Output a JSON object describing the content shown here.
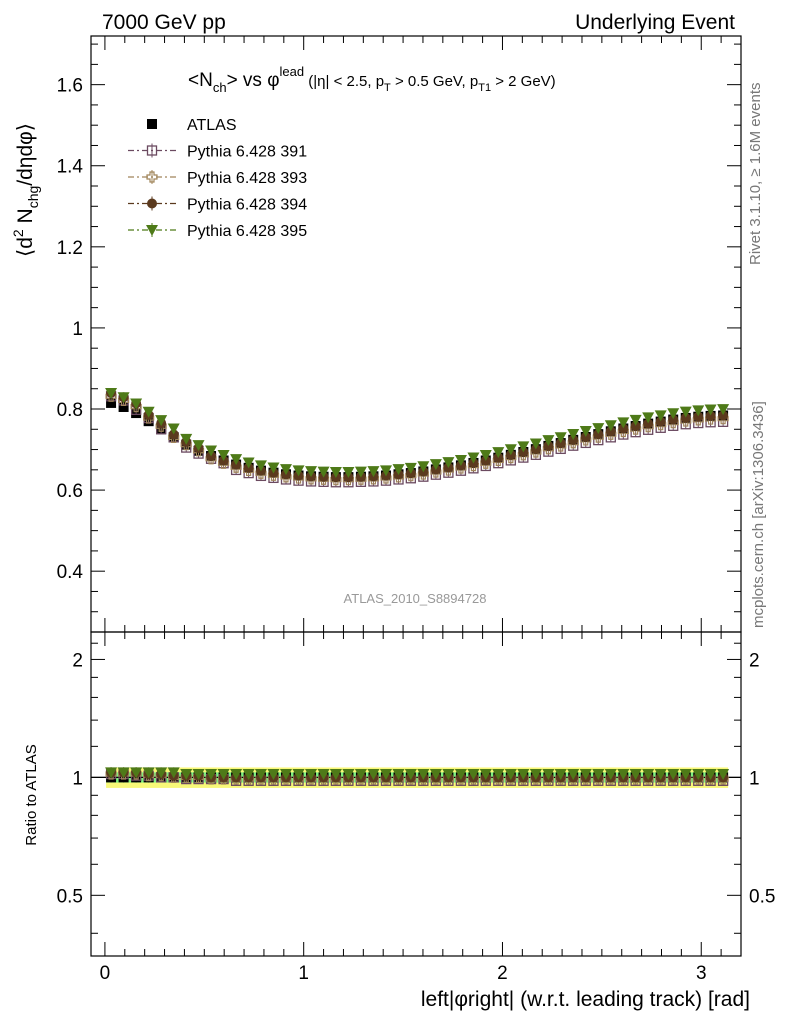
{
  "header": {
    "left": "7000 GeV pp",
    "right": "Underlying Event"
  },
  "side_labels": {
    "rivet": "Rivet 3.1.10, ≥ 1.6M events",
    "mcplots": "mcplots.cern.ch [arXiv:1306.3436]"
  },
  "chart_data": {
    "type": "scatter",
    "title": "<N_ch> vs φ^lead (|η| < 2.5, p_T > 0.5 GeV, p_T1 > 2 GeV)",
    "title_parts": {
      "a": "<N",
      "a_sub": "ch",
      "b": "> vs φ",
      "b_sup": "lead",
      "c": " (|η| < 2.5, p",
      "c_sub": "T",
      "d": " > 0.5 GeV, p",
      "d_sub": "T1",
      "e": " > 2 GeV)"
    },
    "ylabel_parts": {
      "a": "⟨d",
      "a_sup": "2",
      "b": " N",
      "b_sub": "chg",
      "c": "/dηdφ⟩"
    },
    "xlabel": "left|φright| (w.r.t. leading track) [rad]",
    "ratio_ylabel": "Ratio to ATLAS",
    "watermark": "ATLAS_2010_S8894728",
    "xlim": [
      -0.07,
      3.2
    ],
    "ylim": [
      0.25,
      1.72
    ],
    "ratio_ylim": [
      0.35,
      2.35
    ],
    "yticks": [
      "0.4",
      "0.6",
      "0.8",
      "1",
      "1.2",
      "1.4",
      "1.6"
    ],
    "xticks": [
      "0",
      "1",
      "2",
      "3"
    ],
    "ratio_yticks": [
      "0.5",
      "1",
      "2"
    ],
    "legend_position": "top-left",
    "series": [
      {
        "name": "ATLAS",
        "color": "#000000",
        "marker": "filled-square",
        "ratio": [
          1.0,
          1.0,
          1.0,
          1.0,
          1.0,
          1.0,
          1.0,
          1.0,
          1.0,
          1.0,
          1.0,
          1.0,
          1.0,
          1.0,
          1.0,
          1.0,
          1.0,
          1.0,
          1.0,
          1.0,
          1.0,
          1.0,
          1.0,
          1.0,
          1.0,
          1.0,
          1.0,
          1.0,
          1.0,
          1.0,
          1.0,
          1.0,
          1.0,
          1.0,
          1.0,
          1.0,
          1.0,
          1.0,
          1.0,
          1.0,
          1.0,
          1.0,
          1.0,
          1.0,
          1.0,
          1.0,
          1.0,
          1.0,
          1.0,
          1.0
        ]
      },
      {
        "name": "Pythia 6.428 391",
        "color": "#6b4a60",
        "marker": "open-square",
        "ratio": [
          1.02,
          1.02,
          1.01,
          1.01,
          1.0,
          1.0,
          0.99,
          0.99,
          0.99,
          0.99,
          0.98,
          0.98,
          0.98,
          0.98,
          0.98,
          0.98,
          0.98,
          0.98,
          0.98,
          0.98,
          0.98,
          0.98,
          0.98,
          0.98,
          0.98,
          0.98,
          0.98,
          0.98,
          0.98,
          0.98,
          0.98,
          0.98,
          0.98,
          0.98,
          0.98,
          0.98,
          0.98,
          0.98,
          0.98,
          0.98,
          0.98,
          0.98,
          0.98,
          0.98,
          0.98,
          0.98,
          0.98,
          0.98,
          0.98,
          0.98
        ]
      },
      {
        "name": "Pythia 6.428 393",
        "color": "#a0855a",
        "marker": "open-cross",
        "ratio": [
          1.02,
          1.02,
          1.02,
          1.01,
          1.01,
          1.0,
          1.0,
          1.0,
          0.99,
          0.99,
          0.99,
          0.99,
          0.99,
          0.99,
          0.99,
          0.99,
          0.99,
          0.99,
          0.99,
          0.99,
          0.99,
          0.99,
          0.99,
          0.99,
          0.99,
          0.99,
          0.99,
          0.99,
          0.99,
          0.99,
          0.99,
          0.99,
          0.99,
          0.99,
          0.99,
          0.99,
          0.99,
          0.99,
          0.99,
          0.99,
          0.99,
          0.99,
          0.99,
          0.99,
          0.99,
          0.99,
          0.99,
          0.99,
          0.99,
          0.99
        ]
      },
      {
        "name": "Pythia 6.428 394",
        "color": "#5b3a1e",
        "marker": "filled-circle",
        "ratio": [
          1.03,
          1.03,
          1.03,
          1.02,
          1.02,
          1.01,
          1.01,
          1.01,
          1.0,
          1.0,
          1.0,
          1.0,
          1.0,
          1.0,
          1.0,
          1.0,
          1.0,
          1.0,
          1.0,
          1.0,
          1.0,
          1.0,
          1.0,
          1.0,
          1.0,
          1.0,
          1.0,
          1.0,
          1.0,
          1.0,
          1.0,
          1.0,
          1.0,
          1.0,
          1.0,
          1.0,
          1.0,
          1.0,
          1.0,
          1.0,
          1.0,
          1.0,
          1.0,
          1.0,
          1.0,
          1.0,
          1.0,
          1.0,
          1.0,
          1.0
        ]
      },
      {
        "name": "Pythia 6.428 395",
        "color": "#4e7a18",
        "marker": "filled-triangle-down",
        "ratio": [
          1.03,
          1.03,
          1.03,
          1.03,
          1.03,
          1.03,
          1.02,
          1.02,
          1.02,
          1.02,
          1.02,
          1.02,
          1.02,
          1.02,
          1.02,
          1.02,
          1.02,
          1.02,
          1.02,
          1.02,
          1.02,
          1.02,
          1.02,
          1.02,
          1.02,
          1.02,
          1.02,
          1.02,
          1.02,
          1.02,
          1.02,
          1.02,
          1.02,
          1.02,
          1.02,
          1.02,
          1.02,
          1.02,
          1.02,
          1.02,
          1.02,
          1.02,
          1.02,
          1.02,
          1.02,
          1.02,
          1.02,
          1.02,
          1.02,
          1.02
        ]
      }
    ],
    "x": [
      0.031,
      0.094,
      0.157,
      0.22,
      0.283,
      0.346,
      0.409,
      0.471,
      0.534,
      0.597,
      0.66,
      0.723,
      0.785,
      0.848,
      0.911,
      0.974,
      1.037,
      1.1,
      1.162,
      1.225,
      1.288,
      1.351,
      1.414,
      1.477,
      1.539,
      1.602,
      1.665,
      1.728,
      1.791,
      1.854,
      1.916,
      1.979,
      2.042,
      2.105,
      2.168,
      2.231,
      2.293,
      2.356,
      2.419,
      2.482,
      2.545,
      2.608,
      2.67,
      2.733,
      2.796,
      2.859,
      2.922,
      2.985,
      3.047,
      3.11
    ],
    "atlas_y": [
      0.815,
      0.805,
      0.79,
      0.77,
      0.75,
      0.73,
      0.712,
      0.697,
      0.684,
      0.673,
      0.663,
      0.655,
      0.648,
      0.643,
      0.639,
      0.636,
      0.634,
      0.633,
      0.632,
      0.632,
      0.633,
      0.634,
      0.636,
      0.639,
      0.642,
      0.646,
      0.651,
      0.656,
      0.661,
      0.667,
      0.673,
      0.68,
      0.687,
      0.694,
      0.701,
      0.709,
      0.716,
      0.724,
      0.731,
      0.738,
      0.745,
      0.752,
      0.758,
      0.764,
      0.769,
      0.774,
      0.778,
      0.781,
      0.783,
      0.784
    ],
    "ratio_band": {
      "inner": 0.03,
      "outer": 0.06,
      "inner_color": "#7ef07e",
      "outer_color": "#f8f878"
    }
  }
}
